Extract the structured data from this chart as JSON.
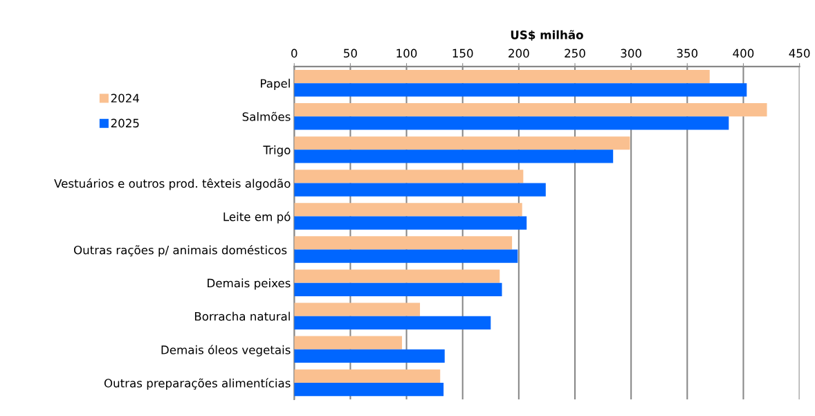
{
  "chart_data": {
    "type": "bar",
    "orientation": "horizontal",
    "xlabel": "US$ milhão",
    "categories": [
      "Papel",
      "Salmões",
      "Trigo",
      "Vestuários e outros prod. têxteis algodão",
      "Leite em pó",
      "Outras rações p/ animais domésticos ",
      "Demais peixes",
      "Borracha natural",
      "Demais óleos vegetais",
      "Outras preparações alimentícias"
    ],
    "series": [
      {
        "name": "2024",
        "color": "#fac090",
        "values": [
          370,
          421,
          299,
          204,
          203,
          194,
          183,
          112,
          96,
          130
        ]
      },
      {
        "name": "2025",
        "color": "#0066ff",
        "values": [
          403,
          387,
          284,
          224,
          207,
          199,
          185,
          175,
          134,
          133
        ]
      }
    ],
    "xlim": [
      0,
      450
    ],
    "xticks": [
      0,
      50,
      100,
      150,
      200,
      250,
      300,
      350,
      400,
      450
    ],
    "grid": "x",
    "legend": "top left"
  }
}
